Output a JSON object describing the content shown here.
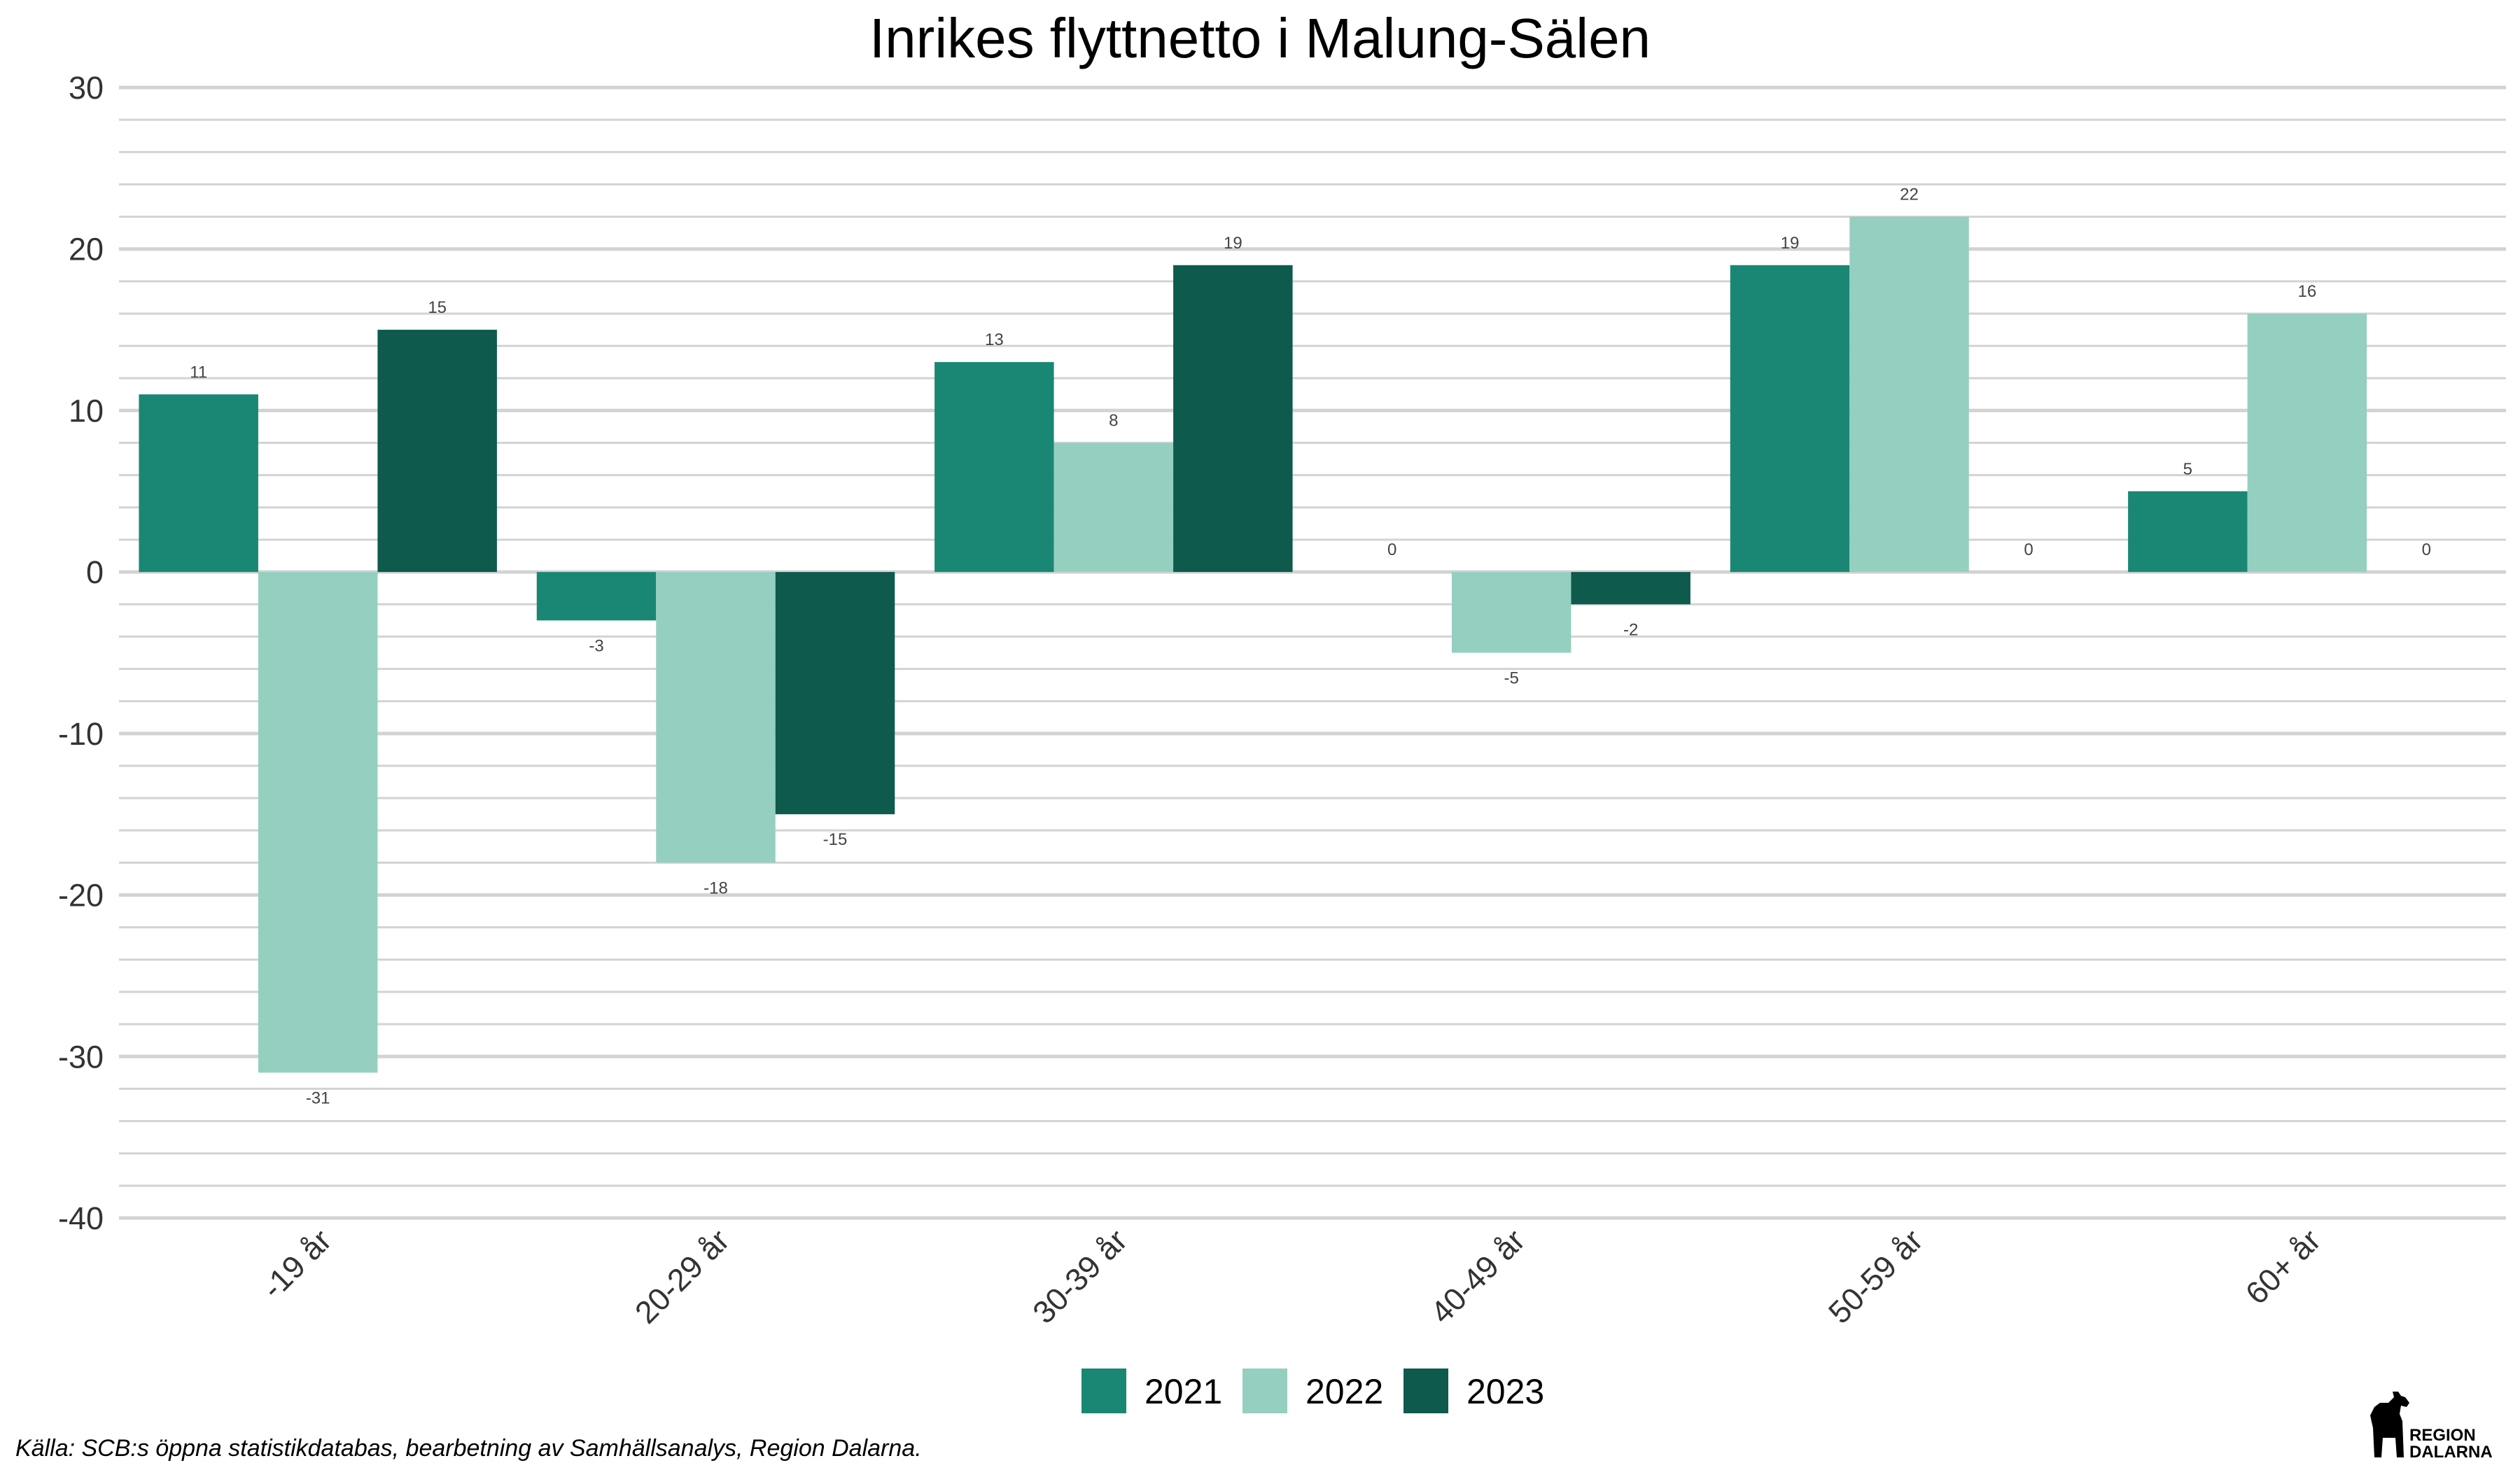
{
  "chart_data": {
    "type": "bar",
    "title": "Inrikes flyttnetto i Malung-Sälen",
    "xlabel": "",
    "ylabel": "",
    "categories": [
      "-19 år",
      "20-29 år",
      "30-39 år",
      "40-49 år",
      "50-59 år",
      "60+ år"
    ],
    "series": [
      {
        "name": "2021",
        "color": "#1a8774",
        "values": [
          11,
          -3,
          13,
          0,
          19,
          5
        ]
      },
      {
        "name": "2022",
        "color": "#95cfbf",
        "values": [
          -31,
          -18,
          8,
          -5,
          22,
          16
        ]
      },
      {
        "name": "2023",
        "color": "#0e5a4d",
        "values": [
          15,
          -15,
          19,
          -2,
          0,
          0
        ]
      }
    ],
    "ylim": [
      -40,
      30
    ],
    "yticks": [
      30,
      20,
      10,
      0,
      -10,
      -20,
      -30,
      -40
    ],
    "grid": true,
    "legend_position": "bottom"
  },
  "caption": "Källa: SCB:s öppna statistikdatabas, bearbetning av Samhällsanalys, Region Dalarna.",
  "logo": {
    "line1": "REGION",
    "line2": "DALARNA"
  }
}
